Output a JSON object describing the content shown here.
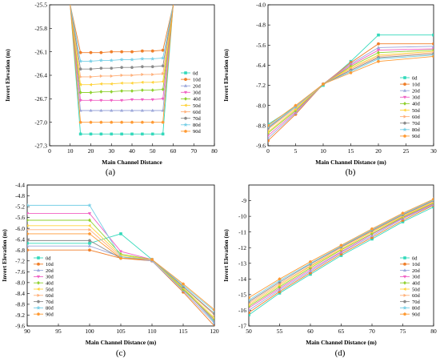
{
  "figure": {
    "series_names": [
      "0d",
      "10d",
      "20d",
      "30d",
      "40d",
      "50d",
      "60d",
      "70d",
      "80d",
      "90d"
    ],
    "series_colors": [
      "#33d9bb",
      "#f07f2a",
      "#9aa6d9",
      "#f061c4",
      "#8fd12f",
      "#ffd33b",
      "#ffb07a",
      "#8a8a8a",
      "#77cfe6",
      "#ff9a33"
    ],
    "series_markers": [
      "square",
      "circle",
      "triangle-up",
      "triangle-down",
      "diamond",
      "triangle-left",
      "triangle-right",
      "hexagon",
      "star",
      "pentagon"
    ]
  },
  "chart_data": [
    {
      "panel": "a",
      "panel_label": "(a)",
      "type": "line",
      "xlabel": "Main Channel Distance",
      "ylabel": "Invert Elevation (m)",
      "xlim": [
        0,
        80
      ],
      "ylim": [
        -27.3,
        -25.5
      ],
      "xticks": [
        0,
        10,
        20,
        30,
        40,
        50,
        60,
        70,
        80
      ],
      "yticks": [
        -27.3,
        -27.0,
        -26.7,
        -26.4,
        -26.1,
        -25.8,
        -25.5
      ],
      "x": [
        10,
        15,
        20,
        25,
        30,
        35,
        40,
        45,
        50,
        55,
        60
      ],
      "legend": "right",
      "series": [
        {
          "name": "0d",
          "values": [
            -25.5,
            -27.15,
            -27.15,
            -27.15,
            -27.15,
            -27.15,
            -27.15,
            -27.15,
            -27.15,
            -27.15,
            -25.5
          ]
        },
        {
          "name": "10d",
          "values": [
            -25.5,
            -26.11,
            -26.11,
            -26.11,
            -26.1,
            -26.1,
            -26.1,
            -26.09,
            -26.09,
            -26.08,
            -25.5
          ]
        },
        {
          "name": "20d",
          "values": [
            -25.5,
            -26.85,
            -26.85,
            -26.85,
            -26.85,
            -26.85,
            -26.85,
            -26.85,
            -26.85,
            -26.85,
            -25.5
          ]
        },
        {
          "name": "30d",
          "values": [
            -25.5,
            -26.72,
            -26.72,
            -26.72,
            -26.72,
            -26.72,
            -26.71,
            -26.71,
            -26.71,
            -26.7,
            -25.5
          ]
        },
        {
          "name": "40d",
          "values": [
            -25.5,
            -26.62,
            -26.62,
            -26.61,
            -26.61,
            -26.6,
            -26.6,
            -26.59,
            -26.59,
            -26.58,
            -25.5
          ]
        },
        {
          "name": "50d",
          "values": [
            -25.5,
            -26.52,
            -26.52,
            -26.51,
            -26.51,
            -26.5,
            -26.5,
            -26.49,
            -26.49,
            -26.48,
            -25.5
          ]
        },
        {
          "name": "60d",
          "values": [
            -25.5,
            -26.42,
            -26.42,
            -26.41,
            -26.41,
            -26.4,
            -26.4,
            -26.39,
            -26.39,
            -26.38,
            -25.5
          ]
        },
        {
          "name": "70d",
          "values": [
            -25.5,
            -26.32,
            -26.32,
            -26.31,
            -26.31,
            -26.3,
            -26.3,
            -26.29,
            -26.29,
            -26.28,
            -25.5
          ]
        },
        {
          "name": "80d",
          "values": [
            -25.5,
            -26.22,
            -26.22,
            -26.21,
            -26.21,
            -26.2,
            -26.2,
            -26.19,
            -26.19,
            -26.18,
            -25.5
          ]
        },
        {
          "name": "90d",
          "values": [
            -25.5,
            -27.0,
            -27.0,
            -27.0,
            -27.0,
            -27.0,
            -27.0,
            -27.0,
            -27.0,
            -27.0,
            -25.5
          ]
        }
      ]
    },
    {
      "panel": "b",
      "panel_label": "(b)",
      "type": "line",
      "xlabel": "Main Channel Distance (m)",
      "ylabel": "Invert Elevation (m)",
      "xlim": [
        0,
        30
      ],
      "ylim": [
        -9.6,
        -4.0
      ],
      "xticks": [
        0,
        5,
        10,
        15,
        20,
        25,
        30
      ],
      "yticks": [
        -9.6,
        -8.8,
        -8.0,
        -7.2,
        -6.4,
        -5.6,
        -4.8,
        -4.0
      ],
      "x": [
        0,
        5,
        10,
        15,
        20,
        30
      ],
      "legend": "bottom-right",
      "series": [
        {
          "name": "0d",
          "values": [
            -8.75,
            -8.05,
            -7.2,
            -6.25,
            -5.2,
            -5.2
          ]
        },
        {
          "name": "10d",
          "values": [
            -9.4,
            -8.35,
            -7.15,
            -6.3,
            -5.55,
            -5.55
          ]
        },
        {
          "name": "20d",
          "values": [
            -9.3,
            -8.3,
            -7.15,
            -6.35,
            -5.7,
            -5.65
          ]
        },
        {
          "name": "30d",
          "values": [
            -9.2,
            -8.25,
            -7.15,
            -6.4,
            -5.8,
            -5.75
          ]
        },
        {
          "name": "40d",
          "values": [
            -9.1,
            -8.2,
            -7.15,
            -6.45,
            -5.9,
            -5.8
          ]
        },
        {
          "name": "50d",
          "values": [
            -9.05,
            -8.15,
            -7.15,
            -6.5,
            -6.0,
            -5.85
          ]
        },
        {
          "name": "60d",
          "values": [
            -8.95,
            -8.1,
            -7.15,
            -6.55,
            -6.05,
            -5.9
          ]
        },
        {
          "name": "70d",
          "values": [
            -8.9,
            -8.05,
            -7.15,
            -6.6,
            -6.1,
            -5.95
          ]
        },
        {
          "name": "80d",
          "values": [
            -8.85,
            -8.05,
            -7.15,
            -6.65,
            -6.15,
            -6.0
          ]
        },
        {
          "name": "90d",
          "values": [
            -8.8,
            -8.0,
            -7.15,
            -6.7,
            -6.25,
            -6.05
          ]
        }
      ]
    },
    {
      "panel": "c",
      "panel_label": "(c)",
      "type": "line",
      "xlabel": "Main Channel Distance (m)",
      "ylabel": "Invert Elevation (m)",
      "xlim": [
        90,
        120
      ],
      "ylim": [
        -9.6,
        -4.4
      ],
      "xticks": [
        90,
        95,
        100,
        105,
        110,
        115,
        120
      ],
      "yticks": [
        -9.6,
        -9.2,
        -8.8,
        -8.4,
        -8.0,
        -7.6,
        -7.2,
        -6.8,
        -6.4,
        -6.0,
        -5.6,
        -5.2,
        -4.8,
        -4.4
      ],
      "x": [
        90,
        100,
        105,
        110,
        115,
        120
      ],
      "legend": "bottom-left",
      "series": [
        {
          "name": "0d",
          "values": [
            -6.55,
            -6.55,
            -6.2,
            -7.15,
            -8.2,
            -9.45
          ]
        },
        {
          "name": "10d",
          "values": [
            -6.8,
            -6.8,
            -7.1,
            -7.2,
            -8.35,
            -9.6
          ]
        },
        {
          "name": "20d",
          "values": [
            -6.65,
            -6.65,
            -7.05,
            -7.2,
            -8.3,
            -9.5
          ]
        },
        {
          "name": "30d",
          "values": [
            -5.45,
            -5.45,
            -6.85,
            -7.15,
            -8.25,
            -9.4
          ]
        },
        {
          "name": "40d",
          "values": [
            -5.7,
            -5.7,
            -6.95,
            -7.15,
            -8.25,
            -9.35
          ]
        },
        {
          "name": "50d",
          "values": [
            -5.9,
            -5.9,
            -7.0,
            -7.15,
            -8.2,
            -9.3
          ]
        },
        {
          "name": "60d",
          "values": [
            -6.05,
            -6.05,
            -7.05,
            -7.15,
            -8.15,
            -9.2
          ]
        },
        {
          "name": "70d",
          "values": [
            -6.45,
            -6.45,
            -7.1,
            -7.15,
            -8.15,
            -9.15
          ]
        },
        {
          "name": "80d",
          "values": [
            -5.15,
            -5.15,
            -7.05,
            -7.15,
            -8.1,
            -9.05
          ]
        },
        {
          "name": "90d",
          "values": [
            -6.2,
            -6.2,
            -7.1,
            -7.15,
            -8.05,
            -9.0
          ]
        }
      ]
    },
    {
      "panel": "d",
      "panel_label": "(d)",
      "type": "line",
      "xlabel": "Main Channel Distance (m)",
      "ylabel": "Invert Elevation (m)",
      "xlim": [
        50,
        80
      ],
      "ylim": [
        -17,
        -8
      ],
      "xticks": [
        50,
        55,
        60,
        65,
        70,
        75,
        80
      ],
      "yticks": [
        -17,
        -16,
        -15,
        -14,
        -13,
        -12,
        -11,
        -10,
        -9
      ],
      "x": [
        50,
        55,
        60,
        65,
        70,
        75,
        80
      ],
      "legend": "bottom-right",
      "series": [
        {
          "name": "0d",
          "values": [
            -16.3,
            -14.9,
            -13.7,
            -12.5,
            -11.45,
            -10.35,
            -9.4
          ]
        },
        {
          "name": "10d",
          "values": [
            -16.15,
            -14.8,
            -13.6,
            -12.4,
            -11.35,
            -10.25,
            -9.3
          ]
        },
        {
          "name": "20d",
          "values": [
            -16.0,
            -14.7,
            -13.5,
            -12.3,
            -11.25,
            -10.15,
            -9.25
          ]
        },
        {
          "name": "30d",
          "values": [
            -15.85,
            -14.6,
            -13.4,
            -12.25,
            -11.15,
            -10.1,
            -9.2
          ]
        },
        {
          "name": "40d",
          "values": [
            -15.75,
            -14.5,
            -13.3,
            -12.15,
            -11.1,
            -10.05,
            -9.15
          ]
        },
        {
          "name": "50d",
          "values": [
            -15.65,
            -14.4,
            -13.2,
            -12.1,
            -11.0,
            -10.0,
            -9.1
          ]
        },
        {
          "name": "60d",
          "values": [
            -15.55,
            -14.3,
            -13.15,
            -12.0,
            -10.95,
            -9.95,
            -9.05
          ]
        },
        {
          "name": "70d",
          "values": [
            -15.45,
            -14.2,
            -13.05,
            -11.95,
            -10.9,
            -9.9,
            -9.0
          ]
        },
        {
          "name": "80d",
          "values": [
            -15.35,
            -14.1,
            -13.0,
            -11.9,
            -10.85,
            -9.85,
            -8.95
          ]
        },
        {
          "name": "90d",
          "values": [
            -15.2,
            -14.0,
            -12.9,
            -11.85,
            -10.8,
            -9.8,
            -8.9
          ]
        }
      ]
    }
  ]
}
